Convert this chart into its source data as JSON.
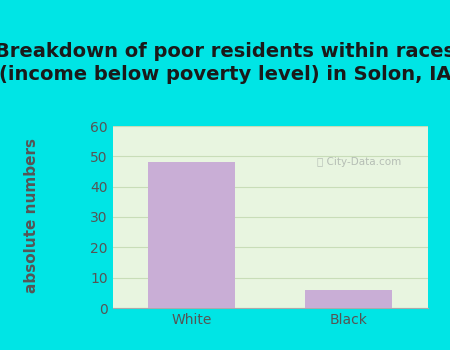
{
  "categories": [
    "White",
    "Black"
  ],
  "values": [
    48,
    6
  ],
  "bar_color": "#c9aed6",
  "background_color": "#00e5e5",
  "plot_bg_color": "#e8f5e0",
  "title": "Breakdown of poor residents within races\n(income below poverty level) in Solon, IA",
  "ylabel": "absolute numbers",
  "ylim": [
    0,
    60
  ],
  "yticks": [
    0,
    10,
    20,
    30,
    40,
    50,
    60
  ],
  "title_fontsize": 14,
  "axis_label_fontsize": 11,
  "tick_fontsize": 10,
  "bar_width": 0.55,
  "grid_color": "#c8ddb8",
  "title_color": "#1a1a1a",
  "ylabel_color": "#555555",
  "tick_color": "#555555",
  "watermark": "City-Data.com"
}
